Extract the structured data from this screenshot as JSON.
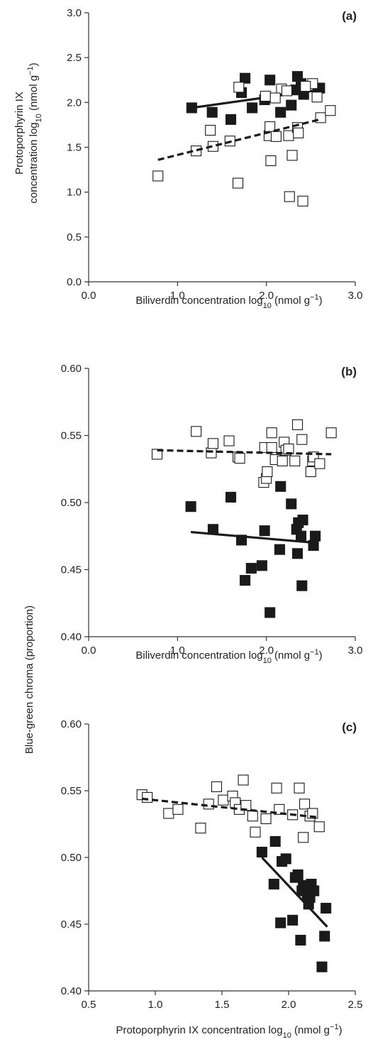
{
  "chart_data": [
    {
      "type": "scatter",
      "panel_label": "(a)",
      "xlabel": {
        "main": "Biliverdin concentration log",
        "sub": "10",
        "unit_pre": " (nmol g",
        "sup": "−1",
        "unit_post": ")"
      },
      "ylabel": {
        "line1": "Protoporphyrin IX",
        "line2": {
          "main": "concentration log",
          "sub": "10",
          "unit_pre": " (nmol g",
          "sup": "−1",
          "unit_post": ")"
        }
      },
      "xlim": [
        0,
        3
      ],
      "ylim": [
        0,
        3
      ],
      "xticks": [
        "0.0",
        "1.0",
        "2.0",
        "3.0"
      ],
      "yticks": [
        "0.0",
        "0.5",
        "1.0",
        "1.5",
        "2.0",
        "2.5",
        "3.0"
      ],
      "grid": false,
      "series": [
        {
          "marker": "filled-square",
          "color": "#1a1a1a",
          "points": [
            [
              1.16,
              1.94
            ],
            [
              1.39,
              1.89
            ],
            [
              1.6,
              1.81
            ],
            [
              1.72,
              2.11
            ],
            [
              1.76,
              2.27
            ],
            [
              1.84,
              1.94
            ],
            [
              1.98,
              2.03
            ],
            [
              2.04,
              2.25
            ],
            [
              2.16,
              1.89
            ],
            [
              2.28,
              1.97
            ],
            [
              2.33,
              2.14
            ],
            [
              2.35,
              2.29
            ],
            [
              2.39,
              2.21
            ],
            [
              2.42,
              2.09
            ],
            [
              2.58,
              2.16
            ],
            [
              2.6,
              2.16
            ]
          ],
          "trend": {
            "style": "solid",
            "x": [
              1.16,
              2.6
            ],
            "y": [
              1.94,
              2.14
            ]
          }
        },
        {
          "marker": "open-square",
          "color": "#1a1a1a",
          "points": [
            [
              0.78,
              1.18
            ],
            [
              1.21,
              1.46
            ],
            [
              1.37,
              1.69
            ],
            [
              1.4,
              1.51
            ],
            [
              1.59,
              1.57
            ],
            [
              1.68,
              1.1
            ],
            [
              1.69,
              2.17
            ],
            [
              1.99,
              2.07
            ],
            [
              2.03,
              1.63
            ],
            [
              2.04,
              1.73
            ],
            [
              2.05,
              1.35
            ],
            [
              2.11,
              1.62
            ],
            [
              2.17,
              2.15
            ],
            [
              2.23,
              2.13
            ],
            [
              2.25,
              1.63
            ],
            [
              2.26,
              0.95
            ],
            [
              2.29,
              1.41
            ],
            [
              2.35,
              1.72
            ],
            [
              2.36,
              1.66
            ],
            [
              2.41,
              0.9
            ],
            [
              2.52,
              2.21
            ],
            [
              2.57,
              2.06
            ],
            [
              2.61,
              1.83
            ],
            [
              2.72,
              1.91
            ],
            [
              2.1,
              2.05
            ],
            [
              2.44,
              2.18
            ]
          ],
          "trend": {
            "style": "dashed",
            "x": [
              0.78,
              2.6
            ],
            "y": [
              1.36,
              1.81
            ]
          }
        }
      ]
    },
    {
      "type": "scatter",
      "panel_label": "(b)",
      "xlabel": {
        "main": "Biliverdin concentration log",
        "sub": "10",
        "unit_pre": " (nmol g",
        "sup": "−1",
        "unit_post": ")"
      },
      "ylabel": null,
      "xlim": [
        0,
        3
      ],
      "ylim": [
        0.4,
        0.6
      ],
      "xticks": [
        "0.0",
        "1.0",
        "2.0",
        "3.0"
      ],
      "yticks": [
        "0.40",
        "0.45",
        "0.50",
        "0.55",
        "0.60"
      ],
      "grid": false,
      "series": [
        {
          "marker": "filled-square",
          "color": "#1a1a1a",
          "points": [
            [
              1.15,
              0.497
            ],
            [
              1.4,
              0.48
            ],
            [
              1.6,
              0.504
            ],
            [
              1.72,
              0.472
            ],
            [
              1.76,
              0.442
            ],
            [
              1.83,
              0.451
            ],
            [
              1.95,
              0.453
            ],
            [
              1.98,
              0.479
            ],
            [
              2.04,
              0.418
            ],
            [
              2.15,
              0.465
            ],
            [
              2.16,
              0.512
            ],
            [
              2.28,
              0.499
            ],
            [
              2.34,
              0.48
            ],
            [
              2.35,
              0.462
            ],
            [
              2.36,
              0.485
            ],
            [
              2.39,
              0.475
            ],
            [
              2.4,
              0.438
            ],
            [
              2.41,
              0.487
            ],
            [
              2.53,
              0.468
            ],
            [
              2.55,
              0.475
            ]
          ],
          "trend": {
            "style": "solid",
            "x": [
              1.15,
              2.55
            ],
            "y": [
              0.478,
              0.47
            ]
          }
        },
        {
          "marker": "open-square",
          "color": "#1a1a1a",
          "points": [
            [
              0.77,
              0.536
            ],
            [
              1.21,
              0.553
            ],
            [
              1.38,
              0.537
            ],
            [
              1.4,
              0.544
            ],
            [
              1.58,
              0.546
            ],
            [
              1.68,
              0.534
            ],
            [
              1.7,
              0.533
            ],
            [
              1.97,
              0.515
            ],
            [
              1.98,
              0.541
            ],
            [
              2.0,
              0.518
            ],
            [
              2.01,
              0.523
            ],
            [
              2.06,
              0.541
            ],
            [
              2.06,
              0.552
            ],
            [
              2.1,
              0.532
            ],
            [
              2.18,
              0.531
            ],
            [
              2.2,
              0.545
            ],
            [
              2.22,
              0.539
            ],
            [
              2.25,
              0.54
            ],
            [
              2.32,
              0.531
            ],
            [
              2.35,
              0.558
            ],
            [
              2.4,
              0.547
            ],
            [
              2.5,
              0.523
            ],
            [
              2.52,
              0.531
            ],
            [
              2.53,
              0.534
            ],
            [
              2.6,
              0.529
            ],
            [
              2.73,
              0.552
            ]
          ],
          "trend": {
            "style": "dashed",
            "x": [
              0.77,
              2.73
            ],
            "y": [
              0.539,
              0.536
            ]
          }
        }
      ]
    },
    {
      "type": "scatter",
      "panel_label": "(c)",
      "xlabel": {
        "main": "Protoporphyrin IX concentration log",
        "sub": "10",
        "unit_pre": " (nmol g",
        "sup": "−1",
        "unit_post": ")"
      },
      "ylabel": null,
      "xlim": [
        0.5,
        2.5
      ],
      "ylim": [
        0.4,
        0.6
      ],
      "xticks": [
        "0.5",
        "1.0",
        "1.5",
        "2.0",
        "2.5"
      ],
      "yticks": [
        "0.40",
        "0.45",
        "0.50",
        "0.55",
        "0.60"
      ],
      "grid": false,
      "series": [
        {
          "marker": "filled-square",
          "color": "#1a1a1a",
          "points": [
            [
              1.8,
              0.504
            ],
            [
              1.89,
              0.48
            ],
            [
              1.9,
              0.512
            ],
            [
              1.94,
              0.451
            ],
            [
              1.95,
              0.497
            ],
            [
              1.98,
              0.499
            ],
            [
              2.03,
              0.453
            ],
            [
              2.05,
              0.485
            ],
            [
              2.07,
              0.487
            ],
            [
              2.09,
              0.438
            ],
            [
              2.1,
              0.475
            ],
            [
              2.11,
              0.478
            ],
            [
              2.13,
              0.479
            ],
            [
              2.14,
              0.472
            ],
            [
              2.15,
              0.465
            ],
            [
              2.16,
              0.47
            ],
            [
              2.17,
              0.48
            ],
            [
              2.18,
              0.475
            ],
            [
              2.19,
              0.475
            ],
            [
              2.25,
              0.418
            ],
            [
              2.27,
              0.441
            ],
            [
              2.28,
              0.462
            ]
          ],
          "trend": {
            "style": "solid",
            "x": [
              1.8,
              2.29
            ],
            "y": [
              0.5,
              0.448
            ]
          }
        },
        {
          "marker": "open-square",
          "color": "#1a1a1a",
          "points": [
            [
              0.9,
              0.547
            ],
            [
              0.94,
              0.545
            ],
            [
              1.1,
              0.533
            ],
            [
              1.17,
              0.536
            ],
            [
              1.34,
              0.522
            ],
            [
              1.4,
              0.54
            ],
            [
              1.46,
              0.553
            ],
            [
              1.51,
              0.543
            ],
            [
              1.58,
              0.546
            ],
            [
              1.6,
              0.541
            ],
            [
              1.63,
              0.536
            ],
            [
              1.66,
              0.558
            ],
            [
              1.68,
              0.539
            ],
            [
              1.73,
              0.531
            ],
            [
              1.75,
              0.519
            ],
            [
              1.83,
              0.529
            ],
            [
              1.91,
              0.552
            ],
            [
              1.93,
              0.536
            ],
            [
              2.03,
              0.532
            ],
            [
              2.08,
              0.552
            ],
            [
              2.11,
              0.515
            ],
            [
              2.12,
              0.54
            ],
            [
              2.16,
              0.531
            ],
            [
              2.18,
              0.533
            ],
            [
              2.23,
              0.523
            ]
          ],
          "trend": {
            "style": "dashed",
            "x": [
              0.9,
              2.23
            ],
            "y": [
              0.544,
              0.53
            ]
          }
        }
      ]
    }
  ],
  "shared_ylabel": "Blue-green chroma (proportion)"
}
